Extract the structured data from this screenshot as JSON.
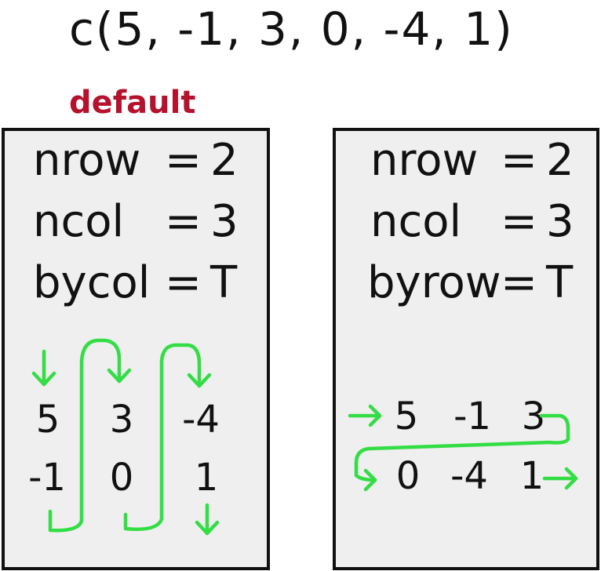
{
  "vector_call": "c(5, -1, 3, 0, -4, 1)",
  "default_label": "default",
  "panels": [
    {
      "params": [
        {
          "name": "nrow",
          "eq": "=",
          "value": "2"
        },
        {
          "name": "ncol",
          "eq": "=",
          "value": "3"
        },
        {
          "name": "bycol",
          "eq": "=",
          "value": "T"
        }
      ],
      "matrix": [
        [
          "5",
          "3",
          "-4"
        ],
        [
          "-1",
          "0",
          "1"
        ]
      ]
    },
    {
      "params": [
        {
          "name": "nrow",
          "eq": "=",
          "value": "2"
        },
        {
          "name": "ncol",
          "eq": "=",
          "value": "3"
        },
        {
          "name": "byrow",
          "eq": "=",
          "value": "T"
        }
      ],
      "matrix": [
        [
          "5",
          "-1",
          "3"
        ],
        [
          "0",
          "-4",
          "1"
        ]
      ]
    }
  ],
  "colors": {
    "arrow": "#33dd44",
    "label": "#b5122d",
    "panel_bg": "#efefef",
    "border": "#111111"
  }
}
